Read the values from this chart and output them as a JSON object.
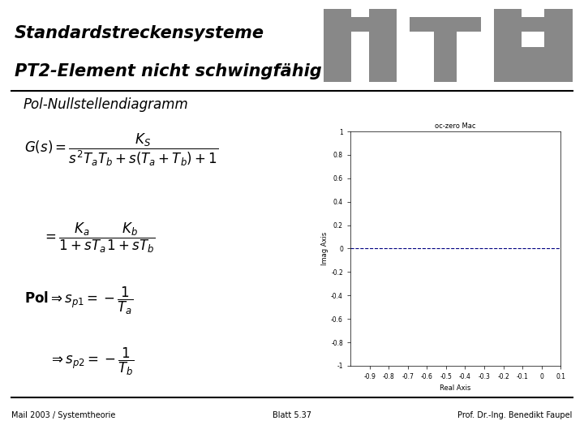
{
  "title_line1": "Standardstreckensysteme",
  "title_line2": "PT2-Element nicht schwingfähig",
  "subtitle": "Pol-Nullstellendiagramm",
  "footer_left": "Mail 2003 / Systemtheorie",
  "footer_center": "Blatt 5.37",
  "footer_right": "Prof. Dr.-Ing. Benedikt Faupel",
  "plot_title": "oc-zero Mac",
  "plot_xlabel": "Real Axis",
  "plot_ylabel": "Imag Axis",
  "plot_xlim": [
    -1.0,
    0.1
  ],
  "plot_ylim": [
    -1.0,
    1.0
  ],
  "plot_xticks": [
    -0.9,
    -0.8,
    -0.7,
    -0.6,
    -0.5,
    -0.4,
    -0.3,
    -0.2,
    -0.1,
    0,
    0.1
  ],
  "plot_yticks": [
    -1.0,
    -0.8,
    -0.6,
    -0.4,
    -0.2,
    0,
    0.2,
    0.4,
    0.6,
    0.8,
    1.0
  ],
  "bg_color": "#ffffff",
  "formula_bg": "#f5c518",
  "plot_outer_bg": "#c8c8c8",
  "plot_area_bg": "#ffffff",
  "logo_color": "#888888",
  "dashed_line_y": 0.0,
  "dashed_line_color": "#000080",
  "separator_color": "#000000",
  "title_fontsize": 15,
  "subtitle_fontsize": 12,
  "footer_fontsize": 7
}
